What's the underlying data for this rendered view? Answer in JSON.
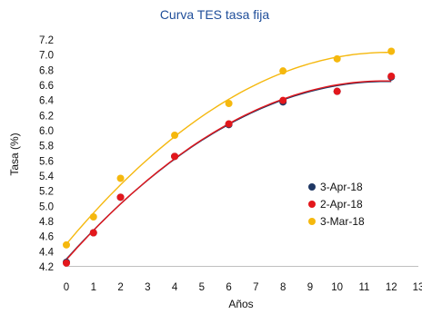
{
  "chart_data": {
    "type": "scatter",
    "title": "Curva TES tasa fija",
    "xlabel": "Años",
    "ylabel": "Tasa (%)",
    "xlim": [
      0,
      13
    ],
    "ylim": [
      4.2,
      7.2
    ],
    "x_ticks": [
      0,
      1,
      2,
      3,
      4,
      5,
      6,
      7,
      8,
      9,
      10,
      11,
      12,
      13
    ],
    "y_ticks": [
      "4.2",
      "4.4",
      "4.6",
      "4.8",
      "5.0",
      "5.2",
      "5.4",
      "5.6",
      "5.8",
      "6.0",
      "6.2",
      "6.4",
      "6.6",
      "6.8",
      "7.0",
      "7.2"
    ],
    "grid": false,
    "legend_position": "right",
    "trendline": "polynomial fit per series",
    "series": [
      {
        "name": "3-Apr-18",
        "color": "#1f3864",
        "points": [
          [
            0,
            4.26
          ],
          [
            1,
            4.65
          ],
          [
            2,
            5.12
          ],
          [
            4,
            5.66
          ],
          [
            6,
            6.08
          ],
          [
            8,
            6.38
          ],
          [
            10,
            6.52
          ],
          [
            12,
            6.71
          ]
        ]
      },
      {
        "name": "2-Apr-18",
        "color": "#e3171c",
        "points": [
          [
            0,
            4.25
          ],
          [
            1,
            4.65
          ],
          [
            2,
            5.12
          ],
          [
            4,
            5.66
          ],
          [
            6,
            6.09
          ],
          [
            8,
            6.4
          ],
          [
            10,
            6.52
          ],
          [
            12,
            6.72
          ]
        ]
      },
      {
        "name": "3-Mar-18",
        "color": "#f5b80e",
        "points": [
          [
            0,
            4.49
          ],
          [
            1,
            4.86
          ],
          [
            2,
            5.37
          ],
          [
            4,
            5.94
          ],
          [
            6,
            6.36
          ],
          [
            8,
            6.79
          ],
          [
            10,
            6.95
          ],
          [
            12,
            7.05
          ]
        ]
      }
    ]
  }
}
